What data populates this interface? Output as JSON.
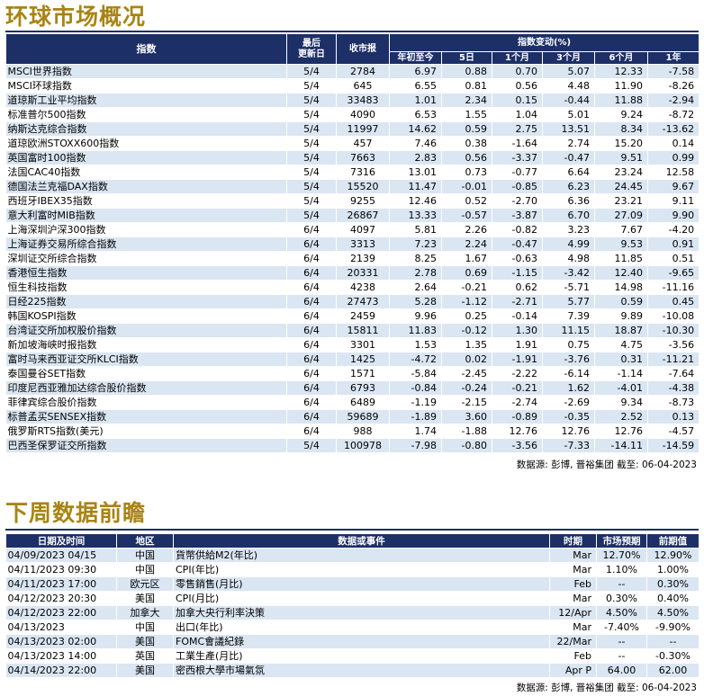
{
  "section1": {
    "title": "环球市场概况",
    "headers": {
      "index": "指数",
      "updated": "最后\n更新日",
      "close": "收市报",
      "change_group": "指数变动(%)",
      "periods": [
        "年初至今",
        "5日",
        "1个月",
        "3个月",
        "6个月",
        "1年"
      ]
    },
    "rows": [
      {
        "name": "MSCI世界指数",
        "date": "5/4",
        "close": "2784",
        "v": [
          "6.97",
          "0.88",
          "0.70",
          "5.07",
          "12.33",
          "-7.58"
        ]
      },
      {
        "name": "MSCI环球指数",
        "date": "5/4",
        "close": "645",
        "v": [
          "6.55",
          "0.81",
          "0.56",
          "4.48",
          "11.90",
          "-8.26"
        ]
      },
      {
        "name": "道琼斯工业平均指数",
        "date": "5/4",
        "close": "33483",
        "v": [
          "1.01",
          "2.34",
          "0.15",
          "-0.44",
          "11.88",
          "-2.94"
        ]
      },
      {
        "name": "标准普尔500指数",
        "date": "5/4",
        "close": "4090",
        "v": [
          "6.53",
          "1.55",
          "1.04",
          "5.01",
          "9.24",
          "-8.72"
        ]
      },
      {
        "name": "纳斯达克综合指数",
        "date": "5/4",
        "close": "11997",
        "v": [
          "14.62",
          "0.59",
          "2.75",
          "13.51",
          "8.34",
          "-13.62"
        ]
      },
      {
        "name": "道琼欧洲STOXX600指数",
        "date": "5/4",
        "close": "457",
        "v": [
          "7.46",
          "0.38",
          "-1.64",
          "2.74",
          "15.20",
          "0.14"
        ]
      },
      {
        "name": "英国富时100指数",
        "date": "5/4",
        "close": "7663",
        "v": [
          "2.83",
          "0.56",
          "-3.37",
          "-0.47",
          "9.51",
          "0.99"
        ]
      },
      {
        "name": "法国CAC40指数",
        "date": "5/4",
        "close": "7316",
        "v": [
          "13.01",
          "0.73",
          "-0.77",
          "6.64",
          "23.24",
          "12.58"
        ]
      },
      {
        "name": "德国法兰克福DAX指数",
        "date": "5/4",
        "close": "15520",
        "v": [
          "11.47",
          "-0.01",
          "-0.85",
          "6.23",
          "24.45",
          "9.67"
        ]
      },
      {
        "name": "西班牙IBEX35指数",
        "date": "5/4",
        "close": "9255",
        "v": [
          "12.46",
          "0.52",
          "-2.70",
          "6.36",
          "23.21",
          "9.11"
        ]
      },
      {
        "name": "意大利富时MIB指数",
        "date": "5/4",
        "close": "26867",
        "v": [
          "13.33",
          "-0.57",
          "-3.87",
          "6.70",
          "27.09",
          "9.90"
        ]
      },
      {
        "name": "上海深圳沪深300指数",
        "date": "6/4",
        "close": "4097",
        "v": [
          "5.81",
          "2.26",
          "-0.82",
          "3.23",
          "7.67",
          "-4.20"
        ]
      },
      {
        "name": "上海证券交易所综合指数",
        "date": "6/4",
        "close": "3313",
        "v": [
          "7.23",
          "2.24",
          "-0.47",
          "4.99",
          "9.53",
          "0.91"
        ]
      },
      {
        "name": "深圳证交所综合指数",
        "date": "6/4",
        "close": "2139",
        "v": [
          "8.25",
          "1.67",
          "-0.63",
          "4.98",
          "11.85",
          "0.51"
        ]
      },
      {
        "name": "香港恒生指数",
        "date": "6/4",
        "close": "20331",
        "v": [
          "2.78",
          "0.69",
          "-1.15",
          "-3.42",
          "12.40",
          "-9.65"
        ]
      },
      {
        "name": "恒生科技指数",
        "date": "6/4",
        "close": "4238",
        "v": [
          "2.64",
          "-0.21",
          "0.62",
          "-5.71",
          "14.98",
          "-11.16"
        ]
      },
      {
        "name": "日经225指数",
        "date": "6/4",
        "close": "27473",
        "v": [
          "5.28",
          "-1.12",
          "-2.71",
          "5.77",
          "0.59",
          "0.45"
        ]
      },
      {
        "name": "韩国KOSPI指数",
        "date": "6/4",
        "close": "2459",
        "v": [
          "9.96",
          "0.25",
          "-0.14",
          "7.39",
          "9.89",
          "-10.08"
        ]
      },
      {
        "name": "台湾证交所加权股价指数",
        "date": "6/4",
        "close": "15811",
        "v": [
          "11.83",
          "-0.12",
          "1.30",
          "11.15",
          "18.87",
          "-10.30"
        ]
      },
      {
        "name": "新加坡海峡时报指数",
        "date": "6/4",
        "close": "3301",
        "v": [
          "1.53",
          "1.35",
          "1.91",
          "0.75",
          "4.75",
          "-3.56"
        ]
      },
      {
        "name": "富时马来西亚证交所KLCI指数",
        "date": "6/4",
        "close": "1425",
        "v": [
          "-4.72",
          "0.02",
          "-1.91",
          "-3.76",
          "0.31",
          "-11.21"
        ]
      },
      {
        "name": "泰国曼谷SET指数",
        "date": "6/4",
        "close": "1571",
        "v": [
          "-5.84",
          "-2.45",
          "-2.22",
          "-6.14",
          "-1.14",
          "-7.64"
        ]
      },
      {
        "name": "印度尼西亚雅加达综合股价指数",
        "date": "6/4",
        "close": "6793",
        "v": [
          "-0.84",
          "-0.24",
          "-0.21",
          "1.62",
          "-4.01",
          "-4.38"
        ]
      },
      {
        "name": "菲律宾综合股价指数",
        "date": "6/4",
        "close": "6489",
        "v": [
          "-1.19",
          "-2.15",
          "-2.74",
          "-2.69",
          "9.34",
          "-8.73"
        ]
      },
      {
        "name": "标普孟买SENSEX指数",
        "date": "6/4",
        "close": "59689",
        "v": [
          "-1.89",
          "3.60",
          "-0.89",
          "-0.35",
          "2.52",
          "0.13"
        ]
      },
      {
        "name": "俄罗斯RTS指数(美元)",
        "date": "6/4",
        "close": "988",
        "v": [
          "1.74",
          "-1.88",
          "12.76",
          "12.76",
          "12.76",
          "-4.57"
        ]
      },
      {
        "name": "巴西圣保罗证交所指数",
        "date": "5/4",
        "close": "100978",
        "v": [
          "-7.98",
          "-0.80",
          "-3.56",
          "-7.33",
          "-14.11",
          "-14.59"
        ]
      }
    ],
    "source": "数据源: 彭博, 晋裕集团 截至: 06-04-2023"
  },
  "section2": {
    "title": "下周数据前瞻",
    "headers": [
      "日期及时间",
      "地区",
      "数据或事件",
      "时期",
      "市场预期",
      "前期值"
    ],
    "rows": [
      {
        "dt": "04/09/2023 04/15",
        "region": "中国",
        "event": "貨幣供給M2(年比)",
        "period": "Mar",
        "exp": "12.70%",
        "prev": "12.90%"
      },
      {
        "dt": "04/11/2023 09:30",
        "region": "中国",
        "event": "CPI(年比)",
        "period": "Mar",
        "exp": "1.10%",
        "prev": "1.00%"
      },
      {
        "dt": "04/11/2023 17:00",
        "region": "欧元区",
        "event": "零售銷售(月比)",
        "period": "Feb",
        "exp": "--",
        "prev": "0.30%"
      },
      {
        "dt": "04/12/2023 20:30",
        "region": "美国",
        "event": "CPI(月比)",
        "period": "Mar",
        "exp": "0.30%",
        "prev": "0.40%"
      },
      {
        "dt": "04/12/2023 22:00",
        "region": "加拿大",
        "event": "加拿大央行利率決策",
        "period": "12/Apr",
        "exp": "4.50%",
        "prev": "4.50%"
      },
      {
        "dt": "04/13/2023",
        "region": "中国",
        "event": "出口(年比)",
        "period": "Mar",
        "exp": "-7.40%",
        "prev": "-9.90%"
      },
      {
        "dt": "04/13/2023 02:00",
        "region": "美国",
        "event": "FOMC會議紀錄",
        "period": "22/Mar",
        "exp": "--",
        "prev": "--"
      },
      {
        "dt": "04/13/2023 14:00",
        "region": "英国",
        "event": "工業生產(月比)",
        "period": "Feb",
        "exp": "--",
        "prev": "-0.30%"
      },
      {
        "dt": "04/14/2023 22:00",
        "region": "美国",
        "event": "密西根大學市場氣氛",
        "period": "Apr P",
        "exp": "64.00",
        "prev": "62.00"
      }
    ],
    "source": "数据源: 彭博, 晋裕集团 截至: 06-04-2023"
  }
}
